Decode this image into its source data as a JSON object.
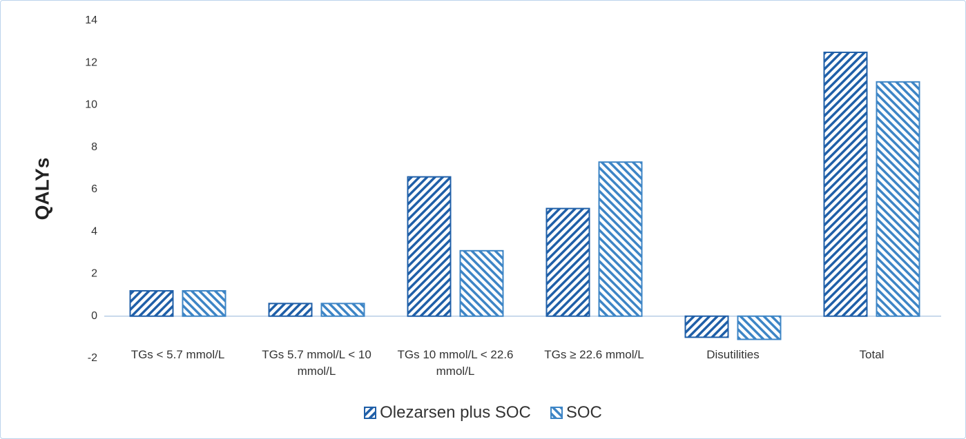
{
  "chart_data": {
    "type": "bar",
    "y_label": "QALYs",
    "categories": [
      "TGs < 5.7 mmol/L",
      "TGs 5.7 mmol/L < 10 mmol/L",
      "TGs 10 mmol/L < 22.6 mmol/L",
      "TGs ≥ 22.6 mmol/L",
      "Disutilities",
      "Total"
    ],
    "series": [
      {
        "name": "Olezarsen plus SOC",
        "color": "#1f5fa8",
        "hatch": "/",
        "values": [
          1.2,
          0.6,
          6.6,
          5.1,
          -1.0,
          12.5
        ]
      },
      {
        "name": "SOC",
        "color": "#3d85c6",
        "hatch": "\\",
        "values": [
          1.2,
          0.6,
          3.1,
          7.3,
          -1.1,
          11.1
        ]
      }
    ],
    "ylim": [
      -2,
      14
    ],
    "yticks": [
      -2,
      0,
      2,
      4,
      6,
      8,
      10,
      12,
      14
    ],
    "grid": false,
    "legend": "bottom"
  }
}
